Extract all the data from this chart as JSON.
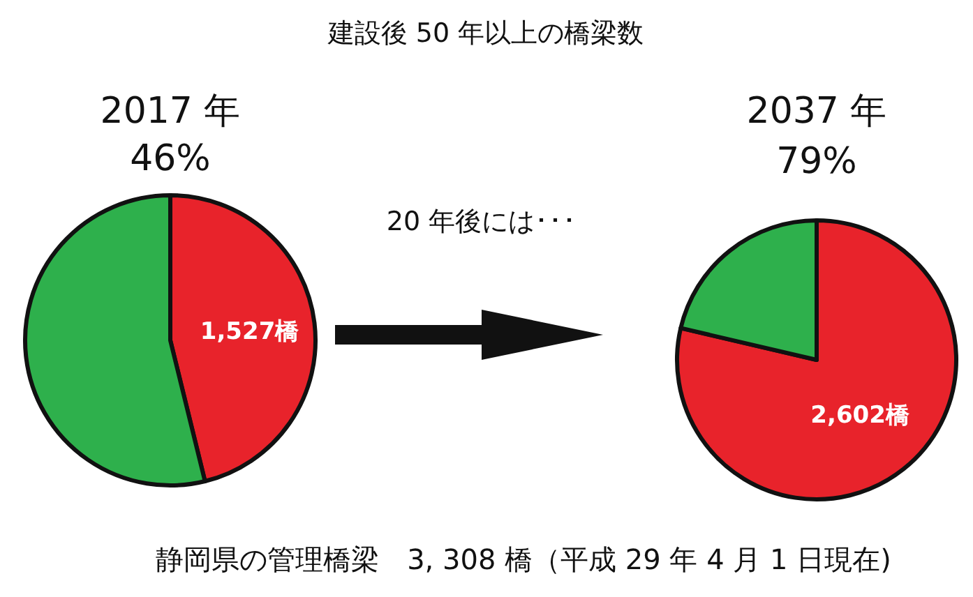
{
  "chart_data": [
    {
      "type": "other",
      "title": "建設後 50 年以上の橋梁数",
      "annotations": [
        "20 年後には･･･",
        "静岡県の管理橋梁　3, 308 橋（平成 29 年 4 月 1 日現在)"
      ]
    },
    {
      "type": "pie",
      "title": "2017 年",
      "subtitle": "46%",
      "categories": [
        null,
        null
      ],
      "values": [
        1527,
        1781
      ],
      "colors": [
        "#e8232b",
        "#2eb04c"
      ],
      "value_labels": [
        "1,527橋",
        null
      ]
    },
    {
      "type": "pie",
      "title": "2037 年",
      "subtitle": "79%",
      "categories": [
        null,
        null
      ],
      "values": [
        2602,
        706
      ],
      "colors": [
        "#e8232b",
        "#2eb04c"
      ],
      "value_labels": [
        "2,602橋",
        null
      ]
    }
  ]
}
